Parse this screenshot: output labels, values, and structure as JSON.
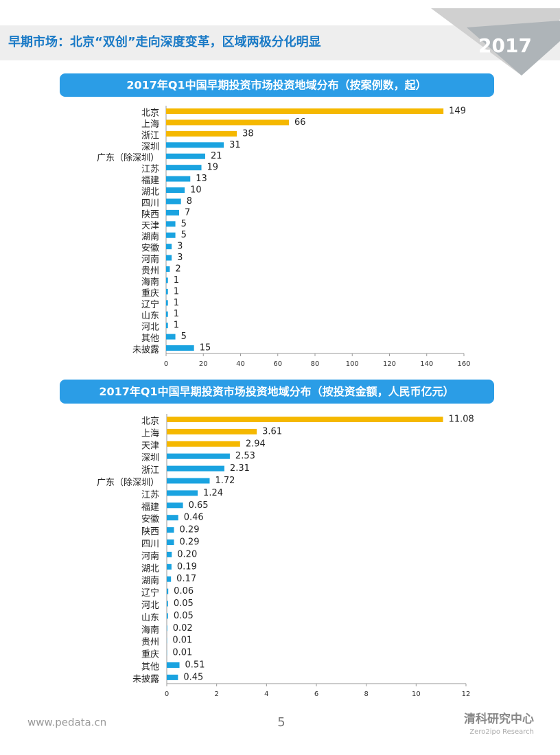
{
  "header": {
    "title": "早期市场：北京“双创”走向深度变革，区域两极分化明显",
    "year": "2017"
  },
  "footer": {
    "url": "www.pedata.cn",
    "page": "5",
    "brand": "清科研究中心",
    "brand_en": "Zero2ipo Research"
  },
  "chart_data": [
    {
      "type": "hbar",
      "title": "2017年Q1中国早期投资市场投资地域分布（按案例数，起）",
      "categories": [
        "北京",
        "上海",
        "浙江",
        "深圳",
        "广东（除深圳）",
        "江苏",
        "福建",
        "湖北",
        "四川",
        "陕西",
        "天津",
        "湖南",
        "安徽",
        "河南",
        "贵州",
        "海南",
        "重庆",
        "辽宁",
        "山东",
        "河北",
        "其他",
        "未披露"
      ],
      "values": [
        149,
        66,
        38,
        31,
        21,
        19,
        13,
        10,
        8,
        7,
        5,
        5,
        3,
        3,
        2,
        1,
        1,
        1,
        1,
        1,
        5,
        15
      ],
      "colors": [
        "#f5b800",
        "#f5b800",
        "#f5b800",
        "#1aa3e0",
        "#1aa3e0",
        "#1aa3e0",
        "#1aa3e0",
        "#1aa3e0",
        "#1aa3e0",
        "#1aa3e0",
        "#1aa3e0",
        "#1aa3e0",
        "#1aa3e0",
        "#1aa3e0",
        "#1aa3e0",
        "#1aa3e0",
        "#1aa3e0",
        "#1aa3e0",
        "#1aa3e0",
        "#1aa3e0",
        "#1aa3e0",
        "#1aa3e0"
      ],
      "xlim": [
        0,
        160
      ],
      "xticks": [
        0,
        20,
        40,
        60,
        80,
        100,
        120,
        140,
        160
      ]
    },
    {
      "type": "hbar",
      "title": "2017年Q1中国早期投资市场投资地域分布（按投资金额，人民币亿元）",
      "categories": [
        "北京",
        "上海",
        "天津",
        "深圳",
        "浙江",
        "广东（除深圳）",
        "江苏",
        "福建",
        "安徽",
        "陕西",
        "四川",
        "河南",
        "湖北",
        "湖南",
        "辽宁",
        "河北",
        "山东",
        "海南",
        "贵州",
        "重庆",
        "其他",
        "未披露"
      ],
      "values": [
        11.08,
        3.61,
        2.94,
        2.53,
        2.31,
        1.72,
        1.24,
        0.65,
        0.46,
        0.29,
        0.29,
        0.2,
        0.19,
        0.17,
        0.06,
        0.05,
        0.05,
        0.02,
        0.01,
        0.01,
        0.51,
        0.45
      ],
      "value_labels": [
        "11.08",
        "3.61",
        "2.94",
        "2.53",
        "2.31",
        "1.72",
        "1.24",
        "0.65",
        "0.46",
        "0.29",
        "0.29",
        "0.20",
        "0.19",
        "0.17",
        "0.06",
        "0.05",
        "0.05",
        "0.02",
        "0.01",
        "0.01",
        "0.51",
        "0.45"
      ],
      "colors": [
        "#f5b800",
        "#f5b800",
        "#f5b800",
        "#1aa3e0",
        "#1aa3e0",
        "#1aa3e0",
        "#1aa3e0",
        "#1aa3e0",
        "#1aa3e0",
        "#1aa3e0",
        "#1aa3e0",
        "#1aa3e0",
        "#1aa3e0",
        "#1aa3e0",
        "#1aa3e0",
        "#1aa3e0",
        "#1aa3e0",
        "#1aa3e0",
        "#1aa3e0",
        "#1aa3e0",
        "#1aa3e0",
        "#1aa3e0"
      ],
      "xlim": [
        0,
        12
      ],
      "xticks": [
        0,
        2,
        4,
        6,
        8,
        10,
        12
      ]
    }
  ]
}
